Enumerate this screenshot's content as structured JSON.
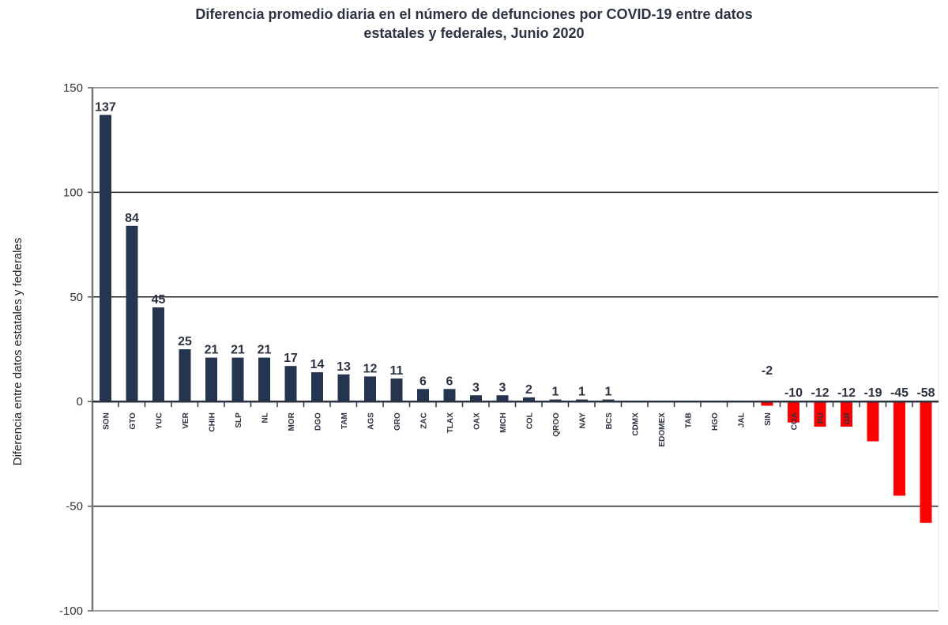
{
  "chart_data": {
    "type": "bar",
    "title": "Diferencia promedio diaria en el número de defunciones por COVID-19 entre datos estatales y federales, Junio 2020",
    "title_lines": [
      "Diferencia promedio diaria en el número de defunciones por COVID-19 entre datos",
      "estatales y federales, Junio 2020"
    ],
    "xlabel": "",
    "ylabel": "Diferencia entre datos estatales y federales",
    "ylim": [
      -100,
      150
    ],
    "yticks": [
      150,
      100,
      50,
      0,
      -50,
      -100
    ],
    "grid": true,
    "legend": "none",
    "categories": [
      "SON",
      "GTO",
      "YUC",
      "VER",
      "CHIH",
      "SLP",
      "NL",
      "MOR",
      "DGO",
      "TAM",
      "AGS",
      "GRO",
      "ZAC",
      "TLAX",
      "OAX",
      "MICH",
      "COL",
      "QROO",
      "NAY",
      "BCS",
      "CDMX",
      "EDOMEX",
      "TAB",
      "HGO",
      "JAL",
      "SIN",
      "COAH",
      "PUE",
      "GRO",
      "",
      "",
      ""
    ],
    "visible_category_labels": [
      "SON",
      "GTO",
      "YUC",
      "VER",
      "CHIH",
      "SLP",
      "NL",
      "MOR",
      "DGO",
      "TAM",
      "AGS",
      "GRO",
      "ZAC",
      "TLAX",
      "OAX",
      "MICH",
      "COL",
      "QROO",
      "NAY",
      "BCS",
      "CDMX",
      "EDOMEX",
      "TAB",
      "HGO",
      "JAL",
      "SIN",
      "COA",
      "PU",
      "GR"
    ],
    "values": [
      137,
      84,
      45,
      25,
      21,
      21,
      21,
      17,
      14,
      13,
      12,
      11,
      6,
      6,
      3,
      3,
      2,
      1,
      1,
      1,
      0,
      0,
      0,
      0,
      0,
      -2,
      -10,
      -12,
      -12,
      -19,
      -45,
      -58
    ],
    "data_labels": [
      "137",
      "84",
      "45",
      "25",
      "21",
      "21",
      "21",
      "17",
      "14",
      "13",
      "12",
      "11",
      "6",
      "6",
      "3",
      "3",
      "2",
      "1",
      "1",
      "1",
      "",
      "",
      "",
      "",
      "",
      "-2",
      "-10",
      "-12",
      "-12",
      "-19",
      "-45",
      "-58"
    ],
    "colors": {
      "positive": "#253550",
      "negative": "#ff0000",
      "grid": "#222222",
      "axis": "#777777"
    }
  }
}
